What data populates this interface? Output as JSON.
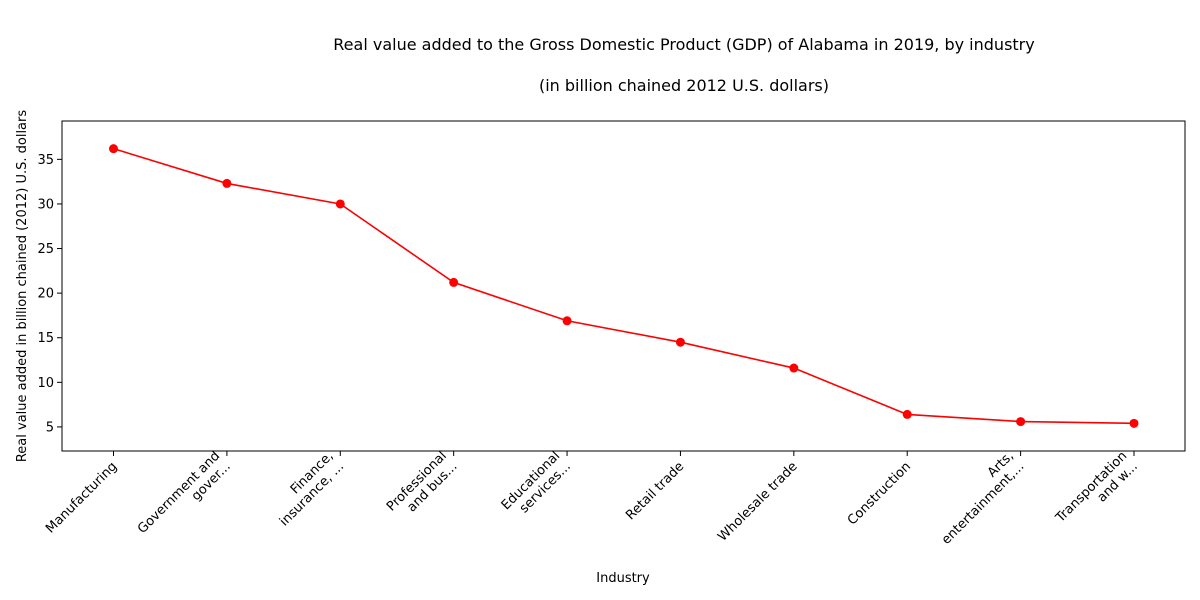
{
  "chart_data": {
    "type": "line",
    "title": "Real value added to the Gross Domestic Product (GDP) of Alabama in 2019, by industry",
    "subtitle": "(in billion chained 2012 U.S. dollars)",
    "xlabel": "Industry",
    "ylabel": "Real value added in billion chained (2012) U.S. dollars",
    "categories": [
      "Manufacturing",
      "Government and\ngover...",
      "Finance,\ninsurance, ...",
      "Professional\nand bus...",
      "Educational\nservices...",
      "Retail trade",
      "Wholesale trade",
      "Construction",
      "Arts,\nentertainment,...",
      "Transportation\nand w..."
    ],
    "series": [
      {
        "color": "#ff0000",
        "values": [
          36.2,
          32.3,
          30.0,
          21.2,
          16.9,
          14.5,
          11.6,
          6.4,
          5.6,
          5.4
        ]
      }
    ],
    "yticks": [
      5,
      10,
      15,
      20,
      25,
      30,
      35
    ],
    "ylim": [
      2.3,
      39.3
    ],
    "grid": false,
    "legend": "none"
  }
}
